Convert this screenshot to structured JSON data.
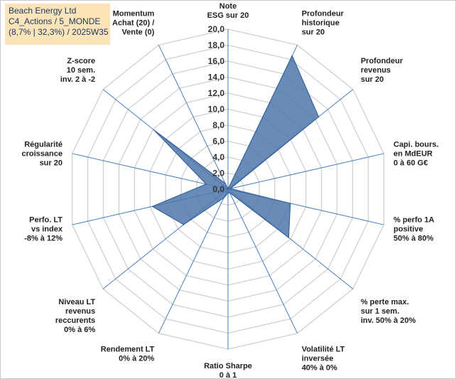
{
  "header": {
    "line1": "Beach Energy Ltd",
    "line2": "C4_Actions / 5_MONDE",
    "line3": "(8,7% | 32,3%) / 2025W35"
  },
  "chart_data": {
    "type": "radar",
    "rmin": 0,
    "rmax": 20,
    "ticks": [
      "0,0",
      "2,0",
      "4,0",
      "6,0",
      "8,0",
      "10,0",
      "12,0",
      "14,0",
      "16,0",
      "18,0",
      "20,0"
    ],
    "tick_values": [
      0,
      2,
      4,
      6,
      8,
      10,
      12,
      14,
      16,
      18,
      20
    ],
    "axes": [
      {
        "lines": [
          "Note",
          "ESG sur 20"
        ],
        "value": 0
      },
      {
        "lines": [
          "Profondeur",
          "historique",
          "sur 20"
        ],
        "value": 18.5
      },
      {
        "lines": [
          "Profondeur",
          "revenus",
          "sur 20"
        ],
        "value": 14.5
      },
      {
        "lines": [
          "Capi. bours.",
          "en MdEUR",
          "0 à 60 G€"
        ],
        "value": 0.3
      },
      {
        "lines": [
          "% perfo 1A",
          "positive",
          "50% à 80%"
        ],
        "value": 8.0
      },
      {
        "lines": [
          "% perte max.",
          "sur 1 sem.",
          "inv. 50% à 20%"
        ],
        "value": 9.7
      },
      {
        "lines": [
          "Volatilité LT",
          "inversée",
          "40% à 0%"
        ],
        "value": 0.5
      },
      {
        "lines": [
          "Ratio Sharpe",
          "0 à 1"
        ],
        "value": 0.5
      },
      {
        "lines": [
          "Rendement LT",
          "0% à 20%"
        ],
        "value": 1.2
      },
      {
        "lines": [
          "Niveau LT",
          "revenus",
          "reccurents",
          "0% à 6%"
        ],
        "value": 7.1
      },
      {
        "lines": [
          "Perfo. LT",
          "vs index",
          "-8% à 12%"
        ],
        "value": 9.7
      },
      {
        "lines": [
          "Régularité",
          "croissance",
          "sur 20"
        ],
        "value": 2.8
      },
      {
        "lines": [
          "Z-score",
          "10 sem.",
          "inv. 2 à -2"
        ],
        "value": 11.8
      },
      {
        "lines": [
          "Momentum",
          "Achat (20) /",
          "Vente (0)"
        ],
        "value": 0.8
      }
    ],
    "colors": {
      "fill": "#4f77aa",
      "stroke": "#35649a",
      "grid": "#d0d0d0",
      "axis": "#4a7ec0"
    }
  }
}
